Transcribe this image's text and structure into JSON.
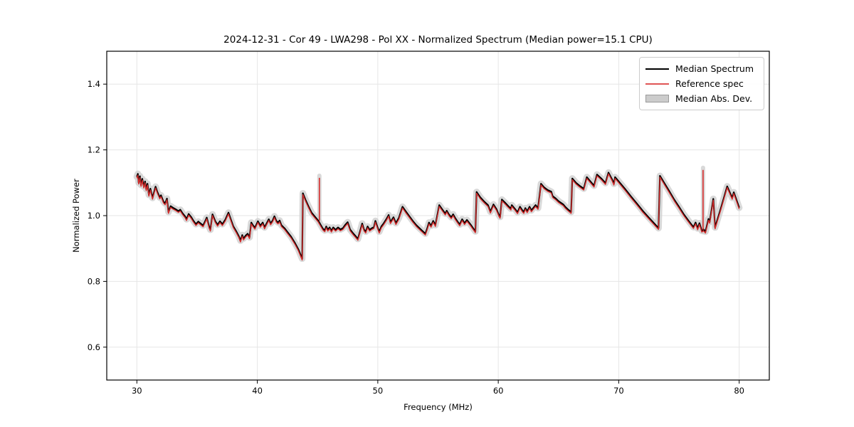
{
  "figure": {
    "title": "2024-12-31 - Cor 49 - LWA298 - Pol XX - Normalized Spectrum (Median power=15.1 CPU)",
    "background": "#ffffff"
  },
  "axes": {
    "xlabel": "Frequency (MHz)",
    "ylabel": "Normalized Power",
    "xlim": [
      27.5,
      82.5
    ],
    "ylim": [
      0.5,
      1.5
    ],
    "x_ticks": [
      30,
      40,
      50,
      60,
      70,
      80
    ],
    "y_ticks": [
      0.6,
      0.8,
      1.0,
      1.2,
      1.4
    ],
    "grid": true,
    "grid_color": "#e6e6e6",
    "frame_color": "#000000"
  },
  "legend": {
    "position": "upper right",
    "items": [
      {
        "label": "Median Spectrum",
        "type": "line",
        "color": "#000000"
      },
      {
        "label": "Reference spec",
        "type": "line",
        "color": "#e05555"
      },
      {
        "label": "Median Abs. Dev.",
        "type": "patch",
        "color": "#cccccc"
      }
    ]
  },
  "chart_data": {
    "type": "line",
    "title": "2024-12-31 - Cor 49 - LWA298 - Pol XX - Normalized Spectrum (Median power=15.1 CPU)",
    "xlabel": "Frequency (MHz)",
    "ylabel": "Normalized Power",
    "xlim": [
      27.5,
      82.5
    ],
    "ylim": [
      0.5,
      1.5
    ],
    "legend_position": "upper right",
    "series": [
      {
        "name": "Median Spectrum",
        "color": "#000000",
        "line_width": 2.2,
        "points": [
          [
            30.0,
            1.118
          ],
          [
            30.08,
            1.127
          ],
          [
            30.15,
            1.1
          ],
          [
            30.25,
            1.12
          ],
          [
            30.35,
            1.093
          ],
          [
            30.45,
            1.112
          ],
          [
            30.58,
            1.088
          ],
          [
            30.68,
            1.104
          ],
          [
            30.78,
            1.08
          ],
          [
            30.88,
            1.097
          ],
          [
            31.0,
            1.063
          ],
          [
            31.12,
            1.082
          ],
          [
            31.3,
            1.054
          ],
          [
            31.55,
            1.088
          ],
          [
            31.7,
            1.072
          ],
          [
            31.9,
            1.055
          ],
          [
            32.0,
            1.062
          ],
          [
            32.2,
            1.043
          ],
          [
            32.35,
            1.037
          ],
          [
            32.5,
            1.052
          ],
          [
            32.62,
            1.011
          ],
          [
            32.8,
            1.029
          ],
          [
            33.0,
            1.024
          ],
          [
            33.2,
            1.02
          ],
          [
            33.45,
            1.014
          ],
          [
            33.6,
            1.018
          ],
          [
            33.8,
            1.007
          ],
          [
            34.0,
            0.998
          ],
          [
            34.12,
            0.989
          ],
          [
            34.3,
            1.005
          ],
          [
            34.5,
            0.996
          ],
          [
            34.7,
            0.984
          ],
          [
            34.9,
            0.974
          ],
          [
            35.1,
            0.982
          ],
          [
            35.3,
            0.976
          ],
          [
            35.5,
            0.97
          ],
          [
            35.68,
            0.984
          ],
          [
            35.8,
            0.994
          ],
          [
            36.0,
            0.966
          ],
          [
            36.1,
            0.957
          ],
          [
            36.28,
            1.004
          ],
          [
            36.5,
            0.984
          ],
          [
            36.7,
            0.972
          ],
          [
            36.9,
            0.983
          ],
          [
            37.1,
            0.974
          ],
          [
            37.35,
            0.988
          ],
          [
            37.6,
            1.009
          ],
          [
            37.8,
            0.988
          ],
          [
            38.0,
            0.968
          ],
          [
            38.25,
            0.952
          ],
          [
            38.45,
            0.938
          ],
          [
            38.6,
            0.924
          ],
          [
            38.75,
            0.941
          ],
          [
            38.85,
            0.93
          ],
          [
            39.05,
            0.94
          ],
          [
            39.2,
            0.945
          ],
          [
            39.35,
            0.934
          ],
          [
            39.5,
            0.979
          ],
          [
            39.65,
            0.97
          ],
          [
            39.8,
            0.963
          ],
          [
            40.05,
            0.983
          ],
          [
            40.25,
            0.969
          ],
          [
            40.45,
            0.979
          ],
          [
            40.6,
            0.964
          ],
          [
            40.78,
            0.977
          ],
          [
            40.95,
            0.989
          ],
          [
            41.1,
            0.976
          ],
          [
            41.28,
            0.986
          ],
          [
            41.42,
            0.998
          ],
          [
            41.58,
            0.984
          ],
          [
            41.72,
            0.979
          ],
          [
            41.85,
            0.985
          ],
          [
            42.0,
            0.971
          ],
          [
            42.25,
            0.962
          ],
          [
            42.5,
            0.95
          ],
          [
            42.8,
            0.936
          ],
          [
            43.1,
            0.918
          ],
          [
            43.4,
            0.898
          ],
          [
            43.6,
            0.88
          ],
          [
            43.72,
            0.869
          ],
          [
            43.78,
            1.068
          ],
          [
            44.0,
            1.048
          ],
          [
            44.25,
            1.028
          ],
          [
            44.5,
            1.009
          ],
          [
            44.8,
            0.996
          ],
          [
            45.05,
            0.985
          ],
          [
            45.25,
            0.972
          ],
          [
            45.45,
            0.96
          ],
          [
            45.6,
            0.955
          ],
          [
            45.72,
            0.967
          ],
          [
            45.85,
            0.957
          ],
          [
            46.0,
            0.964
          ],
          [
            46.15,
            0.954
          ],
          [
            46.3,
            0.964
          ],
          [
            46.5,
            0.957
          ],
          [
            46.7,
            0.964
          ],
          [
            46.9,
            0.958
          ],
          [
            47.1,
            0.962
          ],
          [
            47.3,
            0.972
          ],
          [
            47.5,
            0.98
          ],
          [
            47.7,
            0.958
          ],
          [
            47.95,
            0.946
          ],
          [
            48.15,
            0.938
          ],
          [
            48.35,
            0.929
          ],
          [
            48.55,
            0.955
          ],
          [
            48.7,
            0.976
          ],
          [
            48.85,
            0.958
          ],
          [
            49.0,
            0.951
          ],
          [
            49.15,
            0.967
          ],
          [
            49.32,
            0.957
          ],
          [
            49.5,
            0.962
          ],
          [
            49.68,
            0.965
          ],
          [
            49.8,
            0.984
          ],
          [
            50.0,
            0.962
          ],
          [
            50.12,
            0.951
          ],
          [
            50.3,
            0.967
          ],
          [
            50.5,
            0.977
          ],
          [
            50.72,
            0.99
          ],
          [
            50.9,
            1.002
          ],
          [
            51.05,
            0.98
          ],
          [
            51.3,
            0.995
          ],
          [
            51.5,
            0.977
          ],
          [
            51.75,
            0.993
          ],
          [
            52.05,
            1.027
          ],
          [
            52.3,
            1.014
          ],
          [
            52.6,
            0.999
          ],
          [
            52.9,
            0.984
          ],
          [
            53.2,
            0.971
          ],
          [
            53.6,
            0.957
          ],
          [
            53.95,
            0.945
          ],
          [
            54.1,
            0.961
          ],
          [
            54.25,
            0.979
          ],
          [
            54.42,
            0.969
          ],
          [
            54.6,
            0.984
          ],
          [
            54.78,
            0.971
          ],
          [
            55.1,
            1.032
          ],
          [
            55.35,
            1.019
          ],
          [
            55.6,
            1.006
          ],
          [
            55.72,
            1.015
          ],
          [
            55.9,
            1.004
          ],
          [
            56.1,
            0.995
          ],
          [
            56.25,
            1.004
          ],
          [
            56.42,
            0.993
          ],
          [
            56.6,
            0.983
          ],
          [
            56.8,
            0.973
          ],
          [
            57.0,
            0.989
          ],
          [
            57.2,
            0.977
          ],
          [
            57.4,
            0.987
          ],
          [
            57.7,
            0.973
          ],
          [
            58.1,
            0.952
          ],
          [
            58.2,
            1.072
          ],
          [
            58.5,
            1.056
          ],
          [
            58.85,
            1.042
          ],
          [
            59.15,
            1.032
          ],
          [
            59.35,
            1.012
          ],
          [
            59.6,
            1.034
          ],
          [
            59.85,
            1.02
          ],
          [
            60.05,
            1.002
          ],
          [
            60.15,
            0.996
          ],
          [
            60.3,
            1.049
          ],
          [
            60.55,
            1.04
          ],
          [
            60.8,
            1.03
          ],
          [
            61.05,
            1.021
          ],
          [
            61.12,
            1.032
          ],
          [
            61.4,
            1.02
          ],
          [
            61.6,
            1.01
          ],
          [
            61.8,
            1.027
          ],
          [
            62.0,
            1.016
          ],
          [
            62.12,
            1.011
          ],
          [
            62.25,
            1.023
          ],
          [
            62.4,
            1.013
          ],
          [
            62.6,
            1.027
          ],
          [
            62.75,
            1.016
          ],
          [
            63.1,
            1.032
          ],
          [
            63.3,
            1.023
          ],
          [
            63.55,
            1.097
          ],
          [
            63.8,
            1.086
          ],
          [
            64.1,
            1.078
          ],
          [
            64.4,
            1.073
          ],
          [
            64.52,
            1.059
          ],
          [
            64.75,
            1.053
          ],
          [
            65.0,
            1.044
          ],
          [
            65.4,
            1.034
          ],
          [
            65.55,
            1.027
          ],
          [
            65.75,
            1.02
          ],
          [
            66.05,
            1.011
          ],
          [
            66.15,
            1.113
          ],
          [
            66.45,
            1.1
          ],
          [
            66.75,
            1.091
          ],
          [
            67.1,
            1.082
          ],
          [
            67.35,
            1.117
          ],
          [
            67.65,
            1.104
          ],
          [
            67.95,
            1.091
          ],
          [
            68.2,
            1.125
          ],
          [
            68.55,
            1.113
          ],
          [
            68.9,
            1.099
          ],
          [
            69.15,
            1.131
          ],
          [
            69.45,
            1.11
          ],
          [
            69.6,
            1.097
          ],
          [
            69.7,
            1.117
          ],
          [
            70.0,
            1.104
          ],
          [
            70.5,
            1.082
          ],
          [
            71.0,
            1.059
          ],
          [
            71.5,
            1.037
          ],
          [
            72.0,
            1.014
          ],
          [
            72.5,
            0.994
          ],
          [
            73.0,
            0.974
          ],
          [
            73.3,
            0.962
          ],
          [
            73.42,
            1.121
          ],
          [
            73.8,
            1.098
          ],
          [
            74.2,
            1.074
          ],
          [
            74.6,
            1.049
          ],
          [
            75.0,
            1.027
          ],
          [
            75.4,
            1.004
          ],
          [
            75.8,
            0.984
          ],
          [
            76.2,
            0.965
          ],
          [
            76.38,
            0.979
          ],
          [
            76.55,
            0.961
          ],
          [
            76.7,
            0.977
          ],
          [
            76.9,
            0.954
          ],
          [
            77.05,
            0.958
          ],
          [
            77.2,
            0.951
          ],
          [
            77.45,
            0.99
          ],
          [
            77.55,
            0.981
          ],
          [
            77.85,
            1.051
          ],
          [
            78.0,
            0.964
          ],
          [
            78.5,
            1.025
          ],
          [
            79.0,
            1.089
          ],
          [
            79.3,
            1.064
          ],
          [
            79.42,
            1.054
          ],
          [
            79.55,
            1.071
          ],
          [
            80.0,
            1.024
          ]
        ]
      },
      {
        "name": "Reference spec",
        "color": "#d62b2b",
        "line_width": 1.4,
        "derived_from": "Median Spectrum",
        "offset": -0.004,
        "spikes": [
          {
            "x": 45.15,
            "base": 0.985,
            "top": 1.115
          },
          {
            "x": 77.0,
            "base": 0.956,
            "top": 1.139
          }
        ]
      },
      {
        "name": "Median Abs. Dev.",
        "color": "#cfcfcf",
        "band_half_width": 0.01,
        "derived_from": "Median Spectrum"
      }
    ]
  }
}
